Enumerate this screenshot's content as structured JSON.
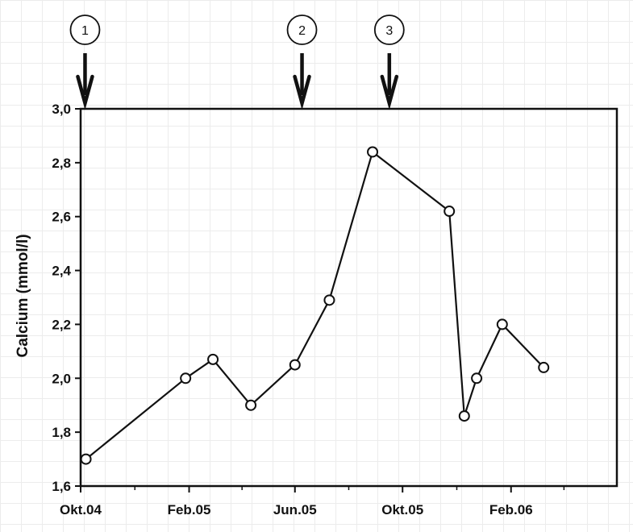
{
  "chart_data": {
    "type": "line",
    "title": "",
    "xlabel": "",
    "ylabel": "Calcium (mmol/l)",
    "x_ticks": [
      {
        "date": "2004-10-01",
        "label": "Okt.04"
      },
      {
        "date": "2005-02-01",
        "label": "Feb.05"
      },
      {
        "date": "2005-06-01",
        "label": "Jun.05"
      },
      {
        "date": "2005-10-01",
        "label": "Okt.05"
      },
      {
        "date": "2006-02-01",
        "label": "Feb.06"
      }
    ],
    "xlim": [
      "2004-10-01",
      "2006-06-01"
    ],
    "ylim": [
      1.6,
      3.0
    ],
    "y_ticks": [
      "1,6",
      "1,8",
      "2,0",
      "2,2",
      "2,4",
      "2,6",
      "2,8",
      "3,0"
    ],
    "series": [
      {
        "points": [
          {
            "x": "2004-10-07",
            "y": 1.7
          },
          {
            "x": "2005-01-28",
            "y": 2.0
          },
          {
            "x": "2005-02-28",
            "y": 2.07
          },
          {
            "x": "2005-04-12",
            "y": 1.9
          },
          {
            "x": "2005-06-01",
            "y": 2.05
          },
          {
            "x": "2005-07-10",
            "y": 2.29
          },
          {
            "x": "2005-08-28",
            "y": 2.84
          },
          {
            "x": "2005-11-23",
            "y": 2.62
          },
          {
            "x": "2005-12-10",
            "y": 1.86
          },
          {
            "x": "2005-12-24",
            "y": 2.0
          },
          {
            "x": "2006-01-22",
            "y": 2.2
          },
          {
            "x": "2006-03-10",
            "y": 2.04
          }
        ]
      }
    ],
    "event_markers": [
      {
        "label": "1",
        "x": "2004-10-06"
      },
      {
        "label": "2",
        "x": "2005-06-09"
      },
      {
        "label": "3",
        "x": "2005-09-16"
      }
    ],
    "grid": false
  }
}
